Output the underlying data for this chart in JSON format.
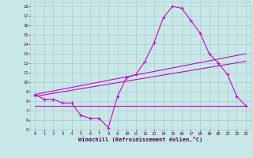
{
  "xlabel": "Windchill (Refroidissement éolien,°C)",
  "xlim": [
    -0.5,
    23.5
  ],
  "ylim": [
    5,
    18.5
  ],
  "yticks": [
    5,
    6,
    7,
    8,
    9,
    10,
    11,
    12,
    13,
    14,
    15,
    16,
    17,
    18
  ],
  "xticks": [
    0,
    1,
    2,
    3,
    4,
    5,
    6,
    7,
    8,
    9,
    10,
    11,
    12,
    13,
    14,
    15,
    16,
    17,
    18,
    19,
    20,
    21,
    22,
    23
  ],
  "bg_color": "#c8e8e8",
  "line_color": "#cc00cc",
  "grid_color": "#aacccc",
  "line1_x": [
    0,
    1,
    2,
    3,
    4,
    5,
    6,
    7,
    8,
    9,
    10,
    11,
    12,
    13,
    14,
    15,
    16,
    17,
    18,
    19,
    20,
    21,
    22,
    23
  ],
  "line1_y": [
    8.7,
    8.2,
    8.2,
    7.8,
    7.8,
    6.5,
    6.2,
    6.2,
    5.2,
    8.5,
    10.5,
    10.8,
    12.2,
    14.2,
    16.8,
    18.0,
    17.8,
    16.5,
    15.2,
    13.0,
    12.0,
    10.8,
    8.5,
    7.5
  ],
  "line2_x": [
    0,
    23
  ],
  "line2_y": [
    8.7,
    13.0
  ],
  "line3_x": [
    0,
    23
  ],
  "line3_y": [
    8.5,
    12.2
  ],
  "line4_x": [
    0,
    23
  ],
  "line4_y": [
    7.5,
    7.5
  ]
}
